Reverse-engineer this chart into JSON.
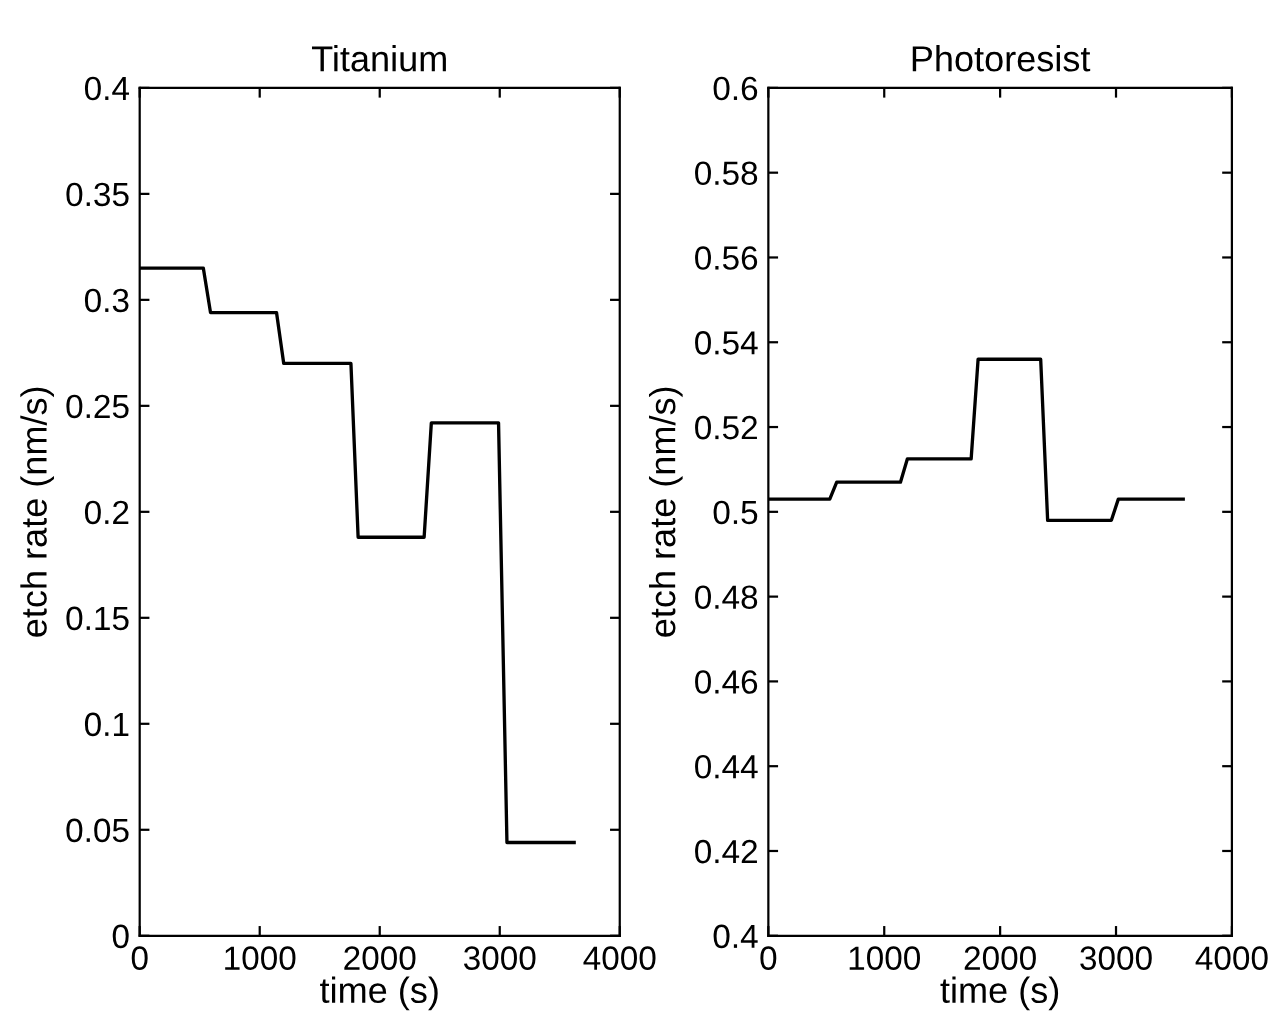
{
  "chart_data": [
    {
      "type": "line",
      "title": "Titanium",
      "xlabel": "time (s)",
      "ylabel": "etch rate (nm/s)",
      "xlim": [
        0,
        4000
      ],
      "xticks": [
        0,
        1000,
        2000,
        3000,
        4000
      ],
      "ylim": [
        0,
        0.4
      ],
      "yticks": [
        0,
        0.05,
        0.1,
        0.15,
        0.2,
        0.25,
        0.3,
        0.35,
        0.4
      ],
      "x": [
        0,
        530,
        590,
        1140,
        1200,
        1760,
        1820,
        2370,
        2430,
        2990,
        3060,
        3620
      ],
      "series": [
        {
          "color": "#000000",
          "values": [
            0.315,
            0.315,
            0.294,
            0.294,
            0.27,
            0.27,
            0.188,
            0.188,
            0.242,
            0.242,
            0.044,
            0.044
          ]
        }
      ]
    },
    {
      "type": "line",
      "title": "Photoresist",
      "xlabel": "time (s)",
      "ylabel": "etch rate (nm/s)",
      "xlim": [
        0,
        4000
      ],
      "xticks": [
        0,
        1000,
        2000,
        3000,
        4000
      ],
      "ylim": [
        0.4,
        0.6
      ],
      "yticks": [
        0.4,
        0.42,
        0.44,
        0.46,
        0.48,
        0.5,
        0.52,
        0.54,
        0.56,
        0.58,
        0.6
      ],
      "x": [
        0,
        530,
        590,
        1140,
        1200,
        1750,
        1810,
        2350,
        2410,
        2960,
        3020,
        3580
      ],
      "series": [
        {
          "color": "#000000",
          "values": [
            0.503,
            0.503,
            0.507,
            0.507,
            0.5125,
            0.5125,
            0.536,
            0.536,
            0.498,
            0.498,
            0.503,
            0.503
          ]
        }
      ]
    }
  ]
}
